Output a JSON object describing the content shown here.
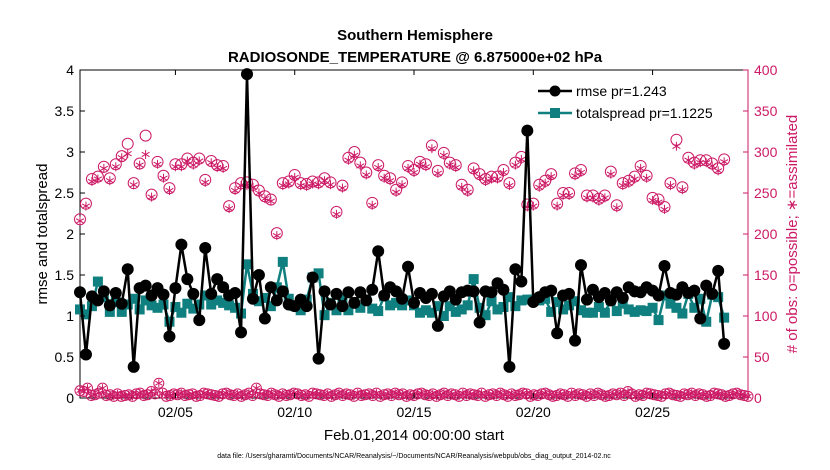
{
  "chart_data": {
    "type": "line",
    "title": "Southern Hemisphere",
    "subtitle": "RADIOSONDE_TEMPERATURE @ 6.875000e+02 hPa",
    "xlabel": "Feb.01,2014 00:00:00 start",
    "ylabel_left": "rmse and totalspread",
    "ylabel_right": "# of obs: o=possible; ∗=assimilated",
    "footnote": "data file: /Users/gharamti/Documents/NCAR/Reanalysis/~/Documents/NCAR/Reanalysis/webpub/obs_diag_output_2014-02.nc",
    "x_ticks": [
      "02/05",
      "02/10",
      "02/15",
      "02/20",
      "02/25"
    ],
    "x_tick_days": [
      5,
      10,
      15,
      20,
      25
    ],
    "xlim_days": [
      1,
      29
    ],
    "ylim_left": [
      0,
      4
    ],
    "yticks_left": [
      "0",
      "0.5",
      "1",
      "1.5",
      "2",
      "2.5",
      "3",
      "3.5",
      "4"
    ],
    "ylim_right": [
      0,
      400
    ],
    "yticks_right": [
      "0",
      "50",
      "100",
      "150",
      "200",
      "250",
      "300",
      "350",
      "400"
    ],
    "legend_position": "top-right",
    "grid": false,
    "colors": {
      "rmse": "#000000",
      "totalspread": "#0f7f7f",
      "obs": "#cc1a66",
      "right_axis": "#cc1a66"
    },
    "x_days": [
      1.0,
      1.25,
      1.5,
      1.75,
      2.0,
      2.25,
      2.5,
      2.75,
      3.0,
      3.25,
      3.5,
      3.75,
      4.0,
      4.25,
      4.5,
      4.75,
      5.0,
      5.25,
      5.5,
      5.75,
      6.0,
      6.25,
      6.5,
      6.75,
      7.0,
      7.25,
      7.5,
      7.75,
      8.0,
      8.25,
      8.5,
      8.75,
      9.0,
      9.25,
      9.5,
      9.75,
      10.0,
      10.25,
      10.5,
      10.75,
      11.0,
      11.25,
      11.5,
      11.75,
      12.0,
      12.25,
      12.5,
      12.75,
      13.0,
      13.25,
      13.5,
      13.75,
      14.0,
      14.25,
      14.5,
      14.75,
      15.0,
      15.25,
      15.5,
      15.75,
      16.0,
      16.25,
      16.5,
      16.75,
      17.0,
      17.25,
      17.5,
      17.75,
      18.0,
      18.25,
      18.5,
      18.75,
      19.0,
      19.25,
      19.5,
      19.75,
      20.0,
      20.25,
      20.5,
      20.75,
      21.0,
      21.25,
      21.5,
      21.75,
      22.0,
      22.25,
      22.5,
      22.75,
      23.0,
      23.25,
      23.5,
      23.75,
      24.0,
      24.25,
      24.5,
      24.75,
      25.0,
      25.25,
      25.5,
      25.75,
      26.0,
      26.25,
      26.5,
      26.75,
      27.0,
      27.25,
      27.5,
      27.75,
      28.0,
      28.25,
      28.5,
      28.75,
      29.0
    ],
    "series": [
      {
        "name": "rmse pr=1.243",
        "values": [
          1.29,
          0.53,
          1.24,
          1.19,
          1.3,
          1.13,
          1.28,
          1.15,
          1.57,
          0.38,
          1.34,
          1.37,
          1.25,
          1.34,
          1.26,
          0.75,
          1.34,
          1.87,
          1.45,
          1.27,
          0.95,
          1.83,
          1.27,
          1.45,
          1.35,
          1.25,
          1.28,
          0.8,
          3.95,
          1.21,
          1.5,
          0.97,
          1.35,
          1.19,
          1.3,
          1.14,
          1.12,
          1.2,
          1.12,
          1.47,
          0.48,
          1.3,
          1.14,
          1.27,
          1.12,
          1.29,
          1.16,
          1.29,
          1.19,
          1.32,
          1.79,
          1.25,
          1.35,
          1.3,
          1.21,
          1.6,
          1.16,
          1.28,
          1.22,
          1.27,
          0.88,
          1.24,
          1.3,
          1.2,
          1.29,
          1.31,
          1.3,
          0.92,
          1.3,
          1.29,
          1.4,
          1.32,
          0.38,
          1.57,
          1.42,
          3.26,
          1.17,
          1.23,
          1.29,
          1.31,
          0.79,
          1.25,
          1.27,
          0.7,
          1.62,
          1.2,
          1.32,
          1.23,
          1.28,
          1.19,
          1.29,
          1.22,
          1.35,
          1.3,
          1.29,
          1.35,
          1.31,
          1.25,
          1.61,
          1.28,
          1.26,
          1.35,
          1.28,
          1.31,
          0.97,
          1.37,
          1.27,
          1.55,
          0.66
        ]
      },
      {
        "name": "totalspread pr=1.1225",
        "values": [
          1.08,
          1.02,
          1.12,
          1.42,
          1.23,
          1.05,
          1.17,
          1.05,
          1.14,
          1.21,
          1.08,
          1.19,
          1.13,
          1.1,
          1.14,
          0.93,
          1.11,
          1.04,
          1.15,
          1.09,
          1.14,
          1.25,
          1.14,
          1.19,
          1.16,
          1.13,
          1.1,
          1.03,
          1.63,
          1.27,
          1.18,
          1.22,
          1.12,
          1.35,
          1.66,
          1.21,
          1.12,
          1.07,
          1.2,
          1.47,
          1.52,
          1.01,
          1.16,
          1.07,
          1.22,
          1.07,
          1.16,
          1.1,
          1.2,
          1.09,
          1.06,
          1.24,
          1.13,
          1.16,
          1.13,
          1.19,
          1.13,
          1.04,
          1.07,
          1.04,
          1.12,
          1.0,
          1.12,
          1.05,
          1.08,
          1.13,
          1.45,
          1.1,
          1.01,
          1.18,
          1.08,
          1.11,
          1.23,
          1.12,
          1.19,
          1.2,
          1.2,
          1.19,
          1.21,
          1.05,
          1.17,
          1.08,
          1.13,
          1.18,
          1.07,
          1.04,
          1.04,
          1.11,
          1.04,
          1.19,
          1.06,
          1.15,
          1.08,
          1.05,
          1.07,
          1.06,
          1.1,
          0.95,
          1.25,
          1.15,
          1.1,
          1.03,
          1.27,
          1.1,
          1.21,
          0.93,
          1.26,
          1.23,
          0.98
        ]
      },
      {
        "name": "possible obs",
        "values": [
          218,
          237,
          267,
          270,
          282,
          268,
          285,
          295,
          310,
          262,
          286,
          320,
          248,
          288,
          271,
          256,
          285,
          285,
          292,
          287,
          292,
          266,
          289,
          284,
          283,
          234,
          256,
          262,
          263,
          260,
          253,
          246,
          242,
          201,
          262,
          264,
          272,
          262,
          261,
          264,
          263,
          268,
          263,
          227,
          259,
          293,
          300,
          287,
          275,
          238,
          284,
          271,
          268,
          254,
          263,
          283,
          278,
          288,
          285,
          308,
          277,
          299,
          287,
          284,
          260,
          254,
          280,
          273,
          267,
          270,
          270,
          278,
          262,
          287,
          294,
          236,
          237,
          260,
          265,
          273,
          237,
          250,
          250,
          274,
          278,
          247,
          247,
          243,
          247,
          276,
          235,
          262,
          265,
          270,
          283,
          271,
          244,
          242,
          233,
          262,
          315,
          257,
          293,
          287,
          290,
          290,
          286,
          280,
          291
        ],
        "symbol": "circle"
      },
      {
        "name": "assimilated obs",
        "values": [
          216,
          234,
          264,
          267,
          280,
          265,
          282,
          293,
          298,
          260,
          284,
          297,
          245,
          285,
          268,
          253,
          282,
          282,
          289,
          284,
          289,
          263,
          287,
          281,
          280,
          231,
          253,
          259,
          259,
          257,
          250,
          243,
          240,
          198,
          259,
          261,
          269,
          259,
          258,
          261,
          260,
          265,
          260,
          224,
          256,
          290,
          296,
          283,
          272,
          235,
          281,
          268,
          265,
          251,
          260,
          280,
          275,
          285,
          282,
          304,
          274,
          296,
          284,
          281,
          257,
          251,
          277,
          270,
          264,
          267,
          267,
          275,
          259,
          284,
          291,
          233,
          234,
          257,
          262,
          270,
          234,
          247,
          247,
          271,
          275,
          244,
          244,
          240,
          244,
          273,
          232,
          259,
          262,
          267,
          280,
          268,
          241,
          239,
          230,
          259,
          307,
          254,
          290,
          284,
          287,
          287,
          283,
          277,
          288
        ],
        "symbol": "asterisk"
      }
    ],
    "possible_low_values": [
      9,
      8,
      12,
      3,
      4,
      6,
      12,
      3,
      4,
      2,
      5,
      2,
      3,
      4,
      2,
      5,
      6,
      3,
      4,
      8,
      5,
      18,
      6,
      2,
      3,
      5,
      4,
      6,
      3,
      4,
      5,
      2,
      3,
      6,
      5,
      4,
      3,
      2,
      5,
      6,
      4,
      3,
      5,
      2,
      4,
      6,
      3,
      12,
      5,
      4,
      3,
      6,
      4,
      2,
      5,
      3,
      4,
      6,
      5,
      3,
      4,
      2,
      6,
      5,
      4,
      3,
      5,
      2,
      4,
      6,
      3,
      5,
      4,
      2,
      6,
      3,
      4,
      5,
      3,
      6,
      2,
      4,
      5,
      3,
      6,
      4,
      5,
      2,
      4,
      3,
      5,
      6,
      4,
      3,
      5,
      2,
      4,
      6,
      3,
      5,
      4,
      2,
      6,
      3,
      5,
      4,
      3,
      6,
      2,
      4,
      5,
      3,
      6,
      4,
      2,
      5,
      3,
      4,
      6,
      5,
      2,
      4,
      3,
      5,
      6,
      4,
      2,
      3,
      5,
      4,
      2,
      6,
      3,
      5,
      4,
      2,
      5,
      3,
      6,
      4,
      2,
      3,
      5,
      4,
      6,
      3,
      8,
      5,
      2,
      4,
      3,
      6,
      5,
      4,
      3,
      2,
      5,
      6,
      4,
      3,
      2,
      5,
      4,
      6,
      3,
      5,
      4,
      2,
      3,
      6,
      5,
      4,
      2,
      3,
      5,
      6,
      4,
      3,
      2
    ]
  }
}
